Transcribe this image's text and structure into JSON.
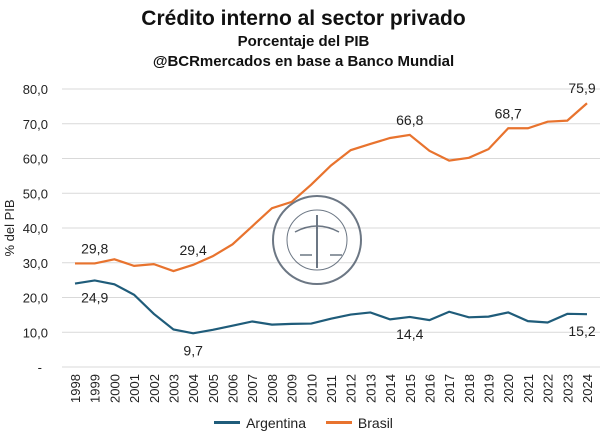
{
  "chart_data": {
    "type": "line",
    "title": "Crédito interno al sector privado",
    "subtitle": "Porcentaje del PIB",
    "source": "@BCRmercados en base a Banco Mundial",
    "ylabel": "% del PIB",
    "xlabel": "",
    "ylim": [
      0,
      80
    ],
    "yticks": [
      "-",
      "10,0",
      "20,0",
      "30,0",
      "40,0",
      "50,0",
      "60,0",
      "70,0",
      "80,0"
    ],
    "grid": true,
    "legend": "bottom",
    "x": [
      "1998",
      "1999",
      "2000",
      "2001",
      "2002",
      "2003",
      "2004",
      "2005",
      "2006",
      "2007",
      "2008",
      "2009",
      "2010",
      "2011",
      "2012",
      "2013",
      "2014",
      "2015",
      "2016",
      "2017",
      "2018",
      "2019",
      "2020",
      "2021",
      "2022",
      "2023",
      "2024"
    ],
    "series": [
      {
        "name": "Argentina",
        "color": "#1f5c7a",
        "values": [
          24.0,
          24.9,
          23.8,
          20.8,
          15.3,
          10.8,
          9.7,
          10.7,
          11.9,
          13.1,
          12.2,
          12.4,
          12.5,
          13.9,
          15.1,
          15.7,
          13.7,
          14.4,
          13.5,
          15.9,
          14.3,
          14.5,
          15.7,
          13.2,
          12.8,
          15.3,
          15.2
        ],
        "labels": [
          {
            "x": "1999",
            "text": "24,9",
            "pos": "below"
          },
          {
            "x": "2004",
            "text": "9,7",
            "pos": "below"
          },
          {
            "x": "2015",
            "text": "14,4",
            "pos": "below"
          },
          {
            "x": "2024",
            "text": "15,2",
            "pos": "below"
          }
        ]
      },
      {
        "name": "Brasil",
        "color": "#e8732e",
        "values": [
          29.8,
          29.8,
          31.0,
          29.1,
          29.6,
          27.6,
          29.4,
          31.9,
          35.3,
          40.5,
          45.7,
          47.5,
          52.5,
          58.0,
          62.4,
          64.2,
          65.9,
          66.8,
          62.2,
          59.4,
          60.2,
          62.7,
          68.7,
          68.7,
          70.6,
          70.9,
          75.9
        ],
        "labels": [
          {
            "x": "1999",
            "text": "29,8",
            "pos": "above"
          },
          {
            "x": "2004",
            "text": "29,4",
            "pos": "above"
          },
          {
            "x": "2015",
            "text": "66,8",
            "pos": "above"
          },
          {
            "x": "2020",
            "text": "68,7",
            "pos": "above"
          },
          {
            "x": "2024",
            "text": "75,9",
            "pos": "above"
          }
        ]
      }
    ]
  },
  "watermark": "BOLSA DE COMERCIO DE ROSARIO"
}
